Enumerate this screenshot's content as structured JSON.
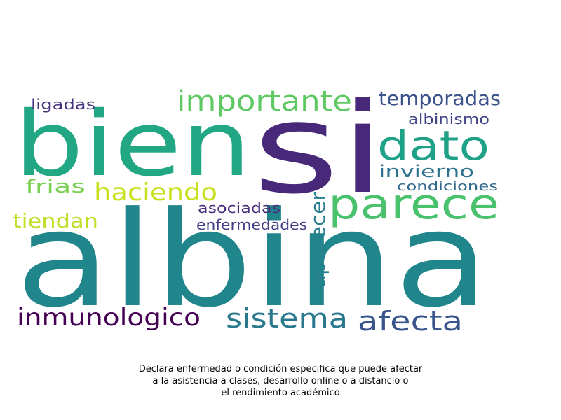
{
  "wordcloud": {
    "words": [
      {
        "text": "albina",
        "color": "#21868c"
      },
      {
        "text": "si",
        "color": "#482878"
      },
      {
        "text": "bien",
        "color": "#22a784"
      },
      {
        "text": "parece",
        "color": "#4ac16d"
      },
      {
        "text": "dato",
        "color": "#1fa187"
      },
      {
        "text": "importante",
        "color": "#5ec962"
      },
      {
        "text": "temporadas",
        "color": "#3b528b"
      },
      {
        "text": "albinismo",
        "color": "#414487"
      },
      {
        "text": "invierno",
        "color": "#2c728e"
      },
      {
        "text": "condiciones",
        "color": "#31688e"
      },
      {
        "text": "haciendo",
        "color": "#c8e020"
      },
      {
        "text": "frias",
        "color": "#7ad151"
      },
      {
        "text": "ligadas",
        "color": "#46337e"
      },
      {
        "text": "tiendan",
        "color": "#bddf26"
      },
      {
        "text": "asociadas",
        "color": "#472d7b"
      },
      {
        "text": "enfermedades",
        "color": "#433e85"
      },
      {
        "text": "aparecer",
        "color": "#277f8e"
      },
      {
        "text": "inmunologico",
        "color": "#440154"
      },
      {
        "text": "sistema",
        "color": "#2a788e"
      },
      {
        "text": "afecta",
        "color": "#39568c"
      }
    ]
  },
  "caption": {
    "line1": "Declara enfermedad o condición especifica que puede afectar",
    "line2": "a la asistencia a clases, desarrollo online o a distancio o",
    "line3": "el rendimiento académico"
  }
}
